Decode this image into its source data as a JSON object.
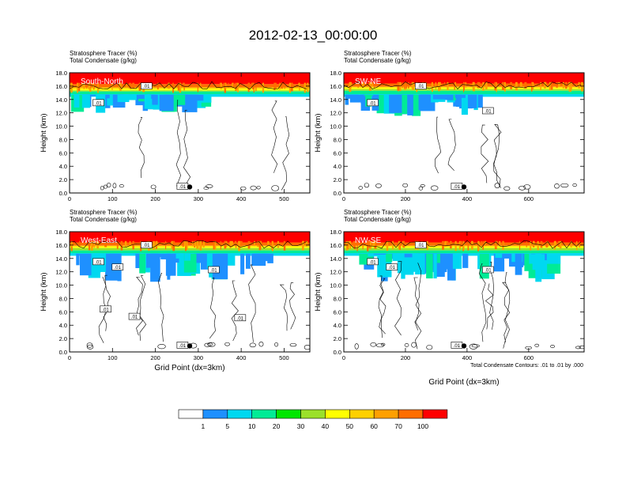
{
  "title": "2012-02-13_00:00:00",
  "footnote": "Total Condensate Contours: .01 to .01 by .000",
  "colorbar": {
    "colors": [
      "#ffffff",
      "#1e90ff",
      "#00d8f0",
      "#00eb96",
      "#00e600",
      "#9be02a",
      "#ffff00",
      "#ffd000",
      "#ffa000",
      "#ff6e00",
      "#ff0000"
    ],
    "labels": [
      "1",
      "5",
      "10",
      "20",
      "30",
      "40",
      "50",
      "60",
      "70",
      "100"
    ]
  },
  "chart_data": [
    {
      "type": "heatmap",
      "panel": "South-North",
      "header_line1": "Stratosphere Tracer   (%)",
      "header_line2": "Total Condensate   (g/kg)",
      "ylabel": "Height (km)",
      "xlabel": "",
      "xlim": [
        0,
        560
      ],
      "ylim": [
        0,
        18
      ],
      "xticks": [
        "0",
        "100",
        "200",
        "300",
        "400",
        "500"
      ],
      "yticks": [
        "0.0",
        "2.0",
        "4.0",
        "6.0",
        "8.0",
        "10.0",
        "12.0",
        "14.0",
        "16.0",
        "18.0"
      ],
      "tracer_band_km": {
        "red_above": 16.3,
        "yellow_top": 15.6,
        "green_top": 15.2,
        "cyan_top": 15.0,
        "blue_bottom": 12.0
      },
      "contour_labels": [
        ".01",
        ".01",
        ".01"
      ],
      "contour_level": 0.01,
      "marker_x": 280
    },
    {
      "type": "heatmap",
      "panel": "SW-NE",
      "header_line1": "Stratosphere Tracer   (%)",
      "header_line2": "Total Condensate   (g/kg)",
      "ylabel": "Height (km)",
      "xlabel": "",
      "xlim": [
        0,
        780
      ],
      "ylim": [
        0,
        18
      ],
      "xticks": [
        "0",
        "200",
        "400",
        "600"
      ],
      "yticks": [
        "0.0",
        "2.0",
        "4.0",
        "6.0",
        "8.0",
        "10.0",
        "12.0",
        "14.0",
        "16.0",
        "18.0"
      ],
      "tracer_band_km": {
        "red_above": 16.4,
        "yellow_top": 15.8,
        "green_top": 15.3,
        "cyan_top": 15.0,
        "blue_bottom": 11.5
      },
      "contour_labels": [
        ".01",
        ".01",
        ".01",
        ".01"
      ],
      "contour_level": 0.01,
      "marker_x": 390
    },
    {
      "type": "heatmap",
      "panel": "West-East",
      "header_line1": "Stratosphere Tracer   (%)",
      "header_line2": "Total Condensate   (g/kg)",
      "ylabel": "Height (km)",
      "xlabel": "Grid Point (dx=3km)",
      "xlim": [
        0,
        560
      ],
      "ylim": [
        0,
        18
      ],
      "xticks": [
        "0",
        "100",
        "200",
        "300",
        "400",
        "500"
      ],
      "yticks": [
        "0.0",
        "2.0",
        "4.0",
        "6.0",
        "8.0",
        "10.0",
        "12.0",
        "14.0",
        "16.0",
        "18.0"
      ],
      "tracer_band_km": {
        "red_above": 16.4,
        "yellow_top": 15.8,
        "green_top": 15.2,
        "cyan_top": 15.0,
        "blue_bottom": 10.5
      },
      "contour_labels": [
        ".01",
        ".01",
        ".01",
        ".01",
        ".01",
        ".01",
        ".01",
        ".01"
      ],
      "contour_level": 0.01,
      "marker_x": 280
    },
    {
      "type": "heatmap",
      "panel": "NW-SE",
      "header_line1": "Stratosphere Tracer   (%)",
      "header_line2": "Total Condensate   (g/kg)",
      "ylabel": "Height (km)",
      "xlabel": "Grid Point (dx=3km)",
      "xlim": [
        0,
        780
      ],
      "ylim": [
        0,
        18
      ],
      "xticks": [
        "0",
        "200",
        "400",
        "600"
      ],
      "yticks": [
        "0.0",
        "2.0",
        "4.0",
        "6.0",
        "8.0",
        "10.0",
        "12.0",
        "14.0",
        "16.0",
        "18.0"
      ],
      "tracer_band_km": {
        "red_above": 16.4,
        "yellow_top": 15.8,
        "green_top": 15.2,
        "cyan_top": 15.0,
        "blue_bottom": 10.5
      },
      "contour_labels": [
        ".01",
        ".01",
        ".01",
        ".01",
        ".01"
      ],
      "contour_level": 0.01,
      "marker_x": 390
    }
  ]
}
